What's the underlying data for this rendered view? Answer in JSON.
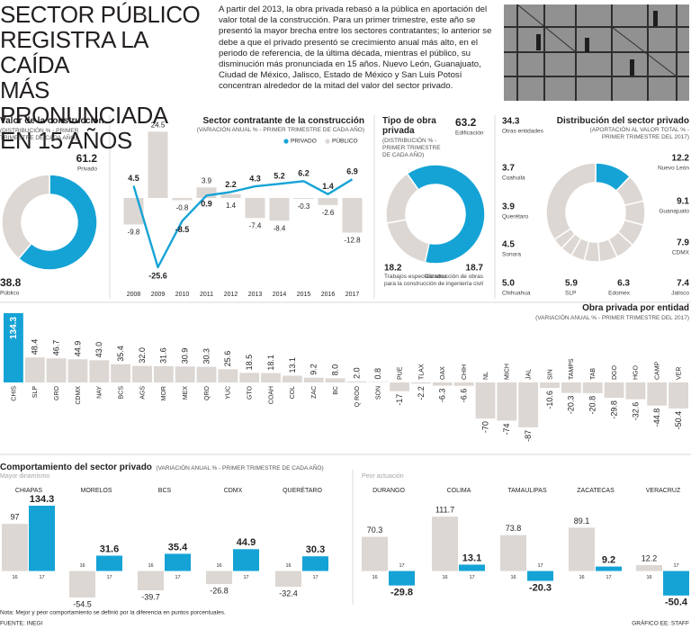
{
  "header": {
    "title": [
      "SECTOR PÚBLICO",
      "REGISTRA LA CAÍDA",
      "MÁS PRONUNCIADA",
      "EN 15 AÑOS"
    ],
    "text": "A partir del 2013, la obra privada rebasó a la pública en aportación del valor total de la construcción. Para un primer trimestre, este año se presentó la mayor brecha entre los sectores contratantes; lo anterior se debe a que el privado presentó se crecimiento anual más alto, en el periodo de referencia, de la última década, mientras el público, su disminución más pronunciada en 15 años. Nuevo León, Guanajuato, Ciudad de México, Jalisco, Estado de México y San Luis Potosí concentran alrededor de la mitad del valor del sector privado."
  },
  "chart_data": [
    {
      "type": "pie",
      "title": "Valor de la construcción",
      "subtitle": "(DISTRIBUCIÓN % - PRIMER TRIMESTRE DE CADA AÑO)",
      "categories": [
        "Privado",
        "Público"
      ],
      "values": [
        61.2,
        38.8
      ],
      "colors": [
        "#15a3d6",
        "#dcd7d3"
      ]
    },
    {
      "type": "bar",
      "title": "Sector contratante de la construcción",
      "subtitle": "(VARIACIÓN ANUAL % - PRIMER TRIMESTRE DE CADA AÑO)",
      "categories": [
        "2008",
        "2009",
        "2010",
        "2011",
        "2012",
        "2013",
        "2014",
        "2015",
        "2016",
        "2017"
      ],
      "series": [
        {
          "name": "PRIVADO",
          "color": "#15a3d6",
          "type": "line",
          "values": [
            4.5,
            -25.6,
            -8.5,
            0.9,
            2.2,
            4.3,
            5.2,
            6.2,
            1.4,
            6.9
          ]
        },
        {
          "name": "PÚBLICO",
          "color": "#dcd7d3",
          "type": "bar",
          "values": [
            -9.8,
            24.5,
            -0.8,
            3.9,
            1.4,
            -7.4,
            -8.4,
            -0.3,
            -2.6,
            -12.8
          ]
        }
      ]
    },
    {
      "type": "pie",
      "title": "Tipo de obra privada",
      "subtitle": "(DISTRIBUCIÓN % - PRIMER TRIMESTRE DE CADA AÑO)",
      "categories": [
        "Edificación",
        "Construcción de obras de ingeniería civil",
        "Trabajos especializados para la construcción"
      ],
      "values": [
        63.2,
        18.7,
        18.2
      ],
      "colors": [
        "#15a3d6",
        "#dcd7d3",
        "#dcd7d3"
      ]
    },
    {
      "type": "pie",
      "title": "Distribución del sector privado",
      "subtitle": "(APORTACIÓN AL VALOR TOTAL % - PRIMER TRIMESTRE DEL 2017)",
      "categories": [
        "Nuevo León",
        "Guanajuato",
        "CDMX",
        "Jalisco",
        "Edomex",
        "SLP",
        "Chihuahua",
        "Sonora",
        "Querétaro",
        "Coahuila",
        "Otras entidades"
      ],
      "values": [
        12.2,
        9.1,
        7.9,
        7.4,
        6.3,
        5.9,
        5.0,
        4.5,
        3.9,
        3.7,
        34.3
      ],
      "value_labels": [
        "12.2",
        "9.1",
        "7.9",
        "7.4",
        "6.3",
        "5.9",
        "5.0",
        "4.5",
        "3.9",
        "3.7",
        "34.3"
      ],
      "colors": [
        "#15a3d6",
        "#dcd7d3",
        "#dcd7d3",
        "#dcd7d3",
        "#dcd7d3",
        "#dcd7d3",
        "#dcd7d3",
        "#dcd7d3",
        "#dcd7d3",
        "#dcd7d3",
        "#dcd7d3"
      ]
    },
    {
      "type": "bar",
      "title": "Obra privada por entidad",
      "subtitle": "(VARIACIÓN ANUAL % - PRIMER TRIMESTRE DEL 2017)",
      "categories": [
        "CHIS",
        "SLP",
        "GRO",
        "CDMX",
        "NAY",
        "BCS",
        "AGS",
        "MOR",
        "MEX",
        "QRO",
        "YUC",
        "GTO",
        "COAH",
        "COL",
        "ZAC",
        "BC",
        "Q ROO",
        "SON",
        "PUE",
        "TLAX",
        "OAX",
        "CHIH",
        "NL",
        "MICH",
        "JAL",
        "SIN",
        "TAMPS",
        "TAB",
        "DGO",
        "HGO",
        "CAMP",
        "VER"
      ],
      "values": [
        134.3,
        48.4,
        46.7,
        44.9,
        43.0,
        35.4,
        32.0,
        31.6,
        30.9,
        30.3,
        25.6,
        18.5,
        18.1,
        13.1,
        9.2,
        8.0,
        2.0,
        0.8,
        -17,
        -2.2,
        -6.3,
        -6.6,
        -70,
        -74,
        -87,
        -10.6,
        -20.3,
        -20.8,
        -29.8,
        -32.6,
        -44.8,
        -50.4
      ],
      "value_labels": [
        "134.3",
        "48.4",
        "46.7",
        "44.9",
        "43.0",
        "35.4",
        "32.0",
        "31.6",
        "30.9",
        "30.3",
        "25.6",
        "18.5",
        "18.1",
        "13.1",
        "9.2",
        "8.0",
        "2.0",
        "0.8",
        "-17",
        "-2.2",
        "-6.3",
        "-6.6",
        "-70",
        "-74",
        "-87",
        "-10.6",
        "-20.3",
        "-20.8",
        "-29.8",
        "-32.6",
        "-44.8",
        "-50.4"
      ],
      "colors": [
        "#15a3d6",
        "#dcd7d3",
        "#dcd7d3",
        "#dcd7d3",
        "#dcd7d3",
        "#dcd7d3",
        "#dcd7d3",
        "#dcd7d3",
        "#dcd7d3",
        "#dcd7d3",
        "#dcd7d3",
        "#dcd7d3",
        "#dcd7d3",
        "#dcd7d3",
        "#dcd7d3",
        "#dcd7d3",
        "#dcd7d3",
        "#dcd7d3",
        "#dcd7d3",
        "#dcd7d3",
        "#dcd7d3",
        "#dcd7d3",
        "#dcd7d3",
        "#dcd7d3",
        "#dcd7d3",
        "#dcd7d3",
        "#dcd7d3",
        "#dcd7d3",
        "#dcd7d3",
        "#dcd7d3",
        "#dcd7d3",
        "#dcd7d3"
      ]
    },
    {
      "type": "bar",
      "title": "Comportamiento del sector privado",
      "subtitle": "(VARIACIÓN ANUAL % - PRIMER TRIMESTRE DE CADA AÑO)",
      "colors": [
        "#dcd7d3",
        "#15a3d6"
      ],
      "groups": [
        {
          "name": "Mayor dinamismo",
          "panels": [
            {
              "name": "CHIAPAS",
              "categories": [
                "16",
                "17"
              ],
              "values": [
                97,
                134.3
              ]
            },
            {
              "name": "MORELOS",
              "categories": [
                "16",
                "17"
              ],
              "values": [
                -54.5,
                31.6
              ]
            },
            {
              "name": "BCS",
              "categories": [
                "16",
                "17"
              ],
              "values": [
                -39.7,
                35.4
              ]
            },
            {
              "name": "CDMX",
              "categories": [
                "16",
                "17"
              ],
              "values": [
                -26.8,
                44.9
              ]
            },
            {
              "name": "QUERÉTARO",
              "categories": [
                "16",
                "17"
              ],
              "values": [
                -32.4,
                30.3
              ]
            }
          ]
        },
        {
          "name": "Peor actuación",
          "panels": [
            {
              "name": "DURANGO",
              "categories": [
                "16",
                "17"
              ],
              "values": [
                70.3,
                -29.8
              ]
            },
            {
              "name": "COLIMA",
              "categories": [
                "16",
                "17"
              ],
              "values": [
                111.7,
                13.1
              ]
            },
            {
              "name": "TAMAULIPAS",
              "categories": [
                "16",
                "17"
              ],
              "values": [
                73.8,
                -20.3
              ]
            },
            {
              "name": "ZACATECAS",
              "categories": [
                "16",
                "17"
              ],
              "values": [
                89.1,
                9.2
              ]
            },
            {
              "name": "VERACRUZ",
              "categories": [
                "16",
                "17"
              ],
              "values": [
                12.2,
                -50.4
              ]
            }
          ]
        }
      ]
    }
  ],
  "footer": {
    "note": "Nota: Mejor y peor comportamiento se definió por la diferencia en puntos porcentuales.",
    "source": "FUENTE: INEGI",
    "credit": "GRÁFICO EE: STAFF"
  }
}
